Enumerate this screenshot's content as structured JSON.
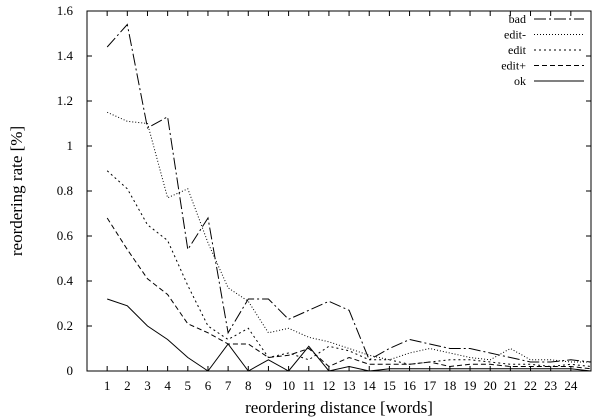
{
  "chart_data": {
    "type": "line",
    "xlabel": "reordering distance [words]",
    "ylabel": "reordering rate [%]",
    "xlim": [
      0,
      25
    ],
    "ylim": [
      0,
      1.6
    ],
    "xticks": [
      1,
      2,
      3,
      4,
      5,
      6,
      7,
      8,
      9,
      10,
      11,
      12,
      13,
      14,
      15,
      16,
      17,
      18,
      19,
      20,
      21,
      22,
      23,
      24
    ],
    "yticks": [
      0,
      0.2,
      0.4,
      0.6,
      0.8,
      1,
      1.2,
      1.4,
      1.6
    ],
    "ytick_labels": [
      "0",
      "0.2",
      "0.4",
      "0.6",
      "0.8",
      "1",
      "1.2",
      "1.4",
      "1.6"
    ],
    "legend_position": "top-right",
    "x": [
      1,
      2,
      3,
      4,
      5,
      6,
      7,
      8,
      9,
      10,
      11,
      12,
      13,
      14,
      15,
      16,
      17,
      18,
      19,
      20,
      21,
      22,
      23,
      24,
      25
    ],
    "series": [
      {
        "name": "bad",
        "dash": "12,3,2,3",
        "values": [
          1.44,
          1.54,
          1.08,
          1.13,
          0.54,
          0.68,
          0.17,
          0.32,
          0.32,
          0.23,
          0.27,
          0.31,
          0.27,
          0.05,
          0.1,
          0.14,
          0.12,
          0.1,
          0.1,
          0.08,
          0.06,
          0.04,
          0.04,
          0.05,
          0.04
        ]
      },
      {
        "name": "edit-",
        "dash": "1,2",
        "values": [
          1.15,
          1.11,
          1.1,
          0.77,
          0.81,
          0.57,
          0.37,
          0.31,
          0.17,
          0.19,
          0.15,
          0.13,
          0.1,
          0.07,
          0.05,
          0.08,
          0.1,
          0.08,
          0.06,
          0.05,
          0.1,
          0.05,
          0.05,
          0.04,
          0.04
        ]
      },
      {
        "name": "edit",
        "dash": "2,3",
        "values": [
          0.89,
          0.81,
          0.65,
          0.58,
          0.38,
          0.2,
          0.14,
          0.19,
          0.06,
          0.08,
          0.05,
          0.11,
          0.09,
          0.05,
          0.05,
          0.03,
          0.04,
          0.05,
          0.05,
          0.04,
          0.03,
          0.03,
          0.02,
          0.03,
          0.02
        ]
      },
      {
        "name": "edit+",
        "dash": "5,3",
        "values": [
          0.68,
          0.54,
          0.41,
          0.34,
          0.21,
          0.17,
          0.12,
          0.12,
          0.06,
          0.07,
          0.1,
          0.02,
          0.06,
          0.03,
          0.03,
          0.03,
          0.04,
          0.02,
          0.03,
          0.03,
          0.02,
          0.02,
          0.02,
          0.02,
          0.01
        ]
      },
      {
        "name": "ok",
        "dash": "",
        "values": [
          0.32,
          0.29,
          0.2,
          0.14,
          0.06,
          0.0,
          0.12,
          0.0,
          0.05,
          0.0,
          0.11,
          0.0,
          0.02,
          0.0,
          0.01,
          0.01,
          0.01,
          0.01,
          0.01,
          0.01,
          0.01,
          0.01,
          0.01,
          0.01,
          0.0
        ]
      }
    ]
  }
}
